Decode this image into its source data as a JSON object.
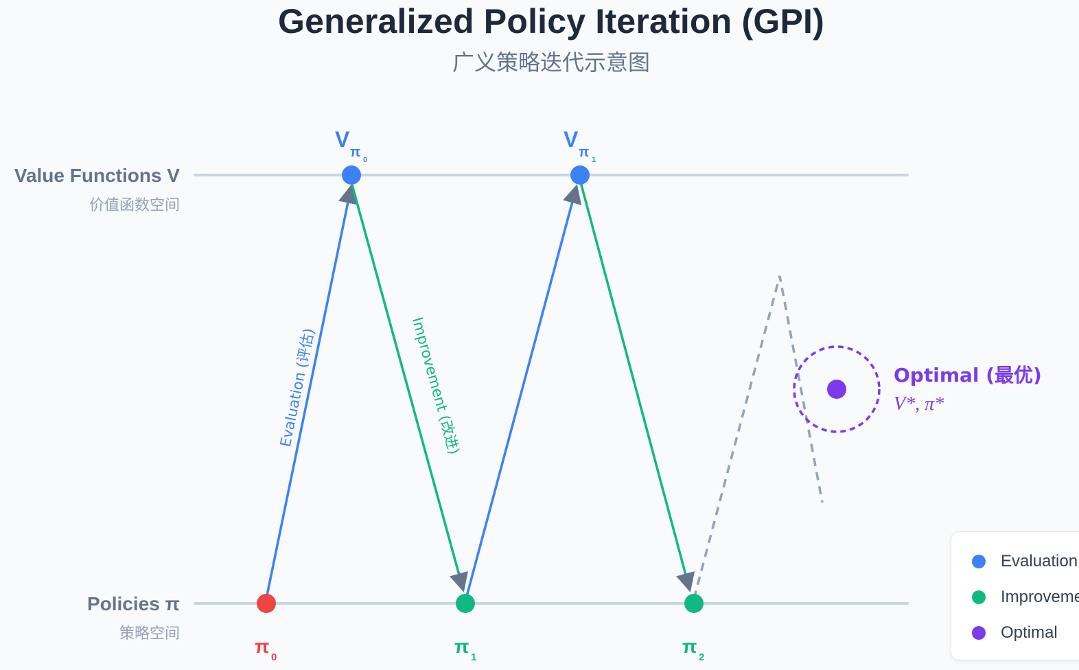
{
  "title": "Generalized Policy Iteration (GPI)",
  "subtitle": "广义策略迭代示意图",
  "rows": {
    "value": {
      "label": "Value Functions V",
      "sublabel": "价值函数空间"
    },
    "policy": {
      "label": "Policies π",
      "sublabel": "策略空间"
    }
  },
  "value_nodes": [
    {
      "label": "V",
      "sub": "π",
      "subsub": "0"
    },
    {
      "label": "V",
      "sub": "π",
      "subsub": "1"
    }
  ],
  "policy_nodes": [
    {
      "label": "π",
      "sub": "0"
    },
    {
      "label": "π",
      "sub": "1"
    },
    {
      "label": "π",
      "sub": "2"
    }
  ],
  "edge_labels": {
    "evaluation": "Evaluation (评估)",
    "improvement": "Improvement (改进)"
  },
  "optimal": {
    "label": "Optimal (最优)",
    "formula": "V*, π*"
  },
  "legend": [
    {
      "label": "Evaluation",
      "color": "#3b82f6"
    },
    {
      "label": "Improvement",
      "color": "#10b981"
    },
    {
      "label": "Optimal",
      "color": "#7c3aed"
    }
  ],
  "colors": {
    "evaluation": "#3b82f6",
    "improvement": "#10b981",
    "optimal": "#7c3aed",
    "initial_policy": "#ef4444",
    "axis": "#cbd5e1",
    "arrowhead": "#64748b",
    "converge": "#94a3b8"
  }
}
